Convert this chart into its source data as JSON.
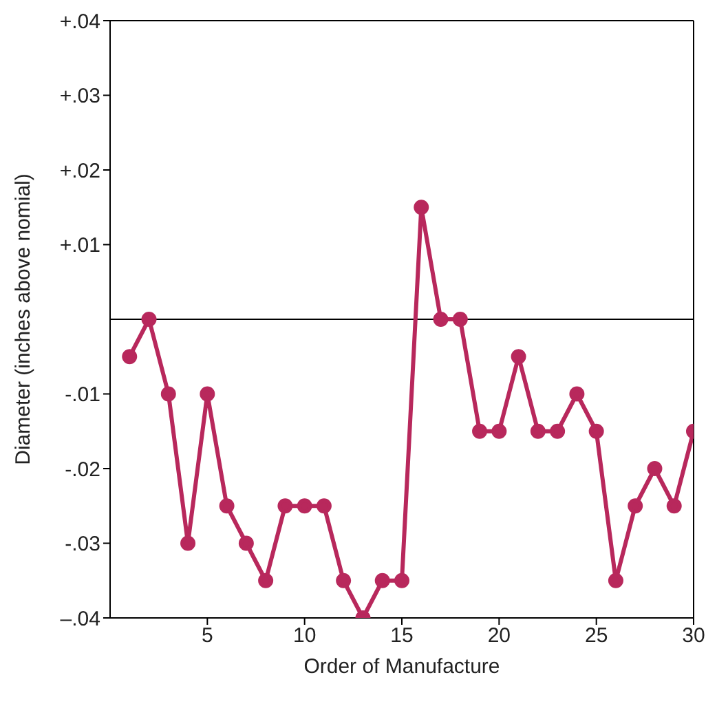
{
  "chart_data": {
    "type": "line",
    "xlabel": "Order of Manufacture",
    "ylabel": "Diameter (inches above nomial)",
    "x": [
      1,
      2,
      3,
      4,
      5,
      6,
      7,
      8,
      9,
      10,
      11,
      12,
      13,
      14,
      15,
      16,
      17,
      18,
      19,
      20,
      21,
      22,
      23,
      24,
      25,
      26,
      27,
      28,
      29,
      30
    ],
    "series": [
      {
        "color": "#b8285c",
        "values": [
          -0.005,
          0,
          -0.01,
          -0.03,
          -0.01,
          -0.025,
          -0.03,
          -0.035,
          -0.025,
          -0.025,
          -0.025,
          -0.035,
          -0.04,
          -0.035,
          -0.035,
          0.015,
          0,
          0,
          -0.015,
          -0.015,
          -0.005,
          -0.015,
          -0.015,
          -0.01,
          -0.015,
          -0.035,
          -0.025,
          -0.02,
          -0.025,
          -0.015
        ]
      }
    ],
    "xlim": [
      0,
      30
    ],
    "xticks": [
      5,
      10,
      15,
      20,
      25,
      30
    ],
    "ylim": [
      -0.04,
      0.04
    ],
    "yticks": [
      {
        "value": 0.04,
        "label": "+.04"
      },
      {
        "value": 0.03,
        "label": "+.03"
      },
      {
        "value": 0.02,
        "label": "+.02"
      },
      {
        "value": 0.01,
        "label": "+.01"
      },
      {
        "value": -0.01,
        "label": "-.01"
      },
      {
        "value": -0.02,
        "label": "-.02"
      },
      {
        "value": -0.03,
        "label": "-.03"
      },
      {
        "value": -0.04,
        "label": "–.04"
      }
    ],
    "ref_lines": [
      {
        "axis": "y",
        "value": 0,
        "color": "#000000"
      }
    ],
    "marker": "circle",
    "line_style": "solid",
    "grid": false,
    "legend": false
  }
}
